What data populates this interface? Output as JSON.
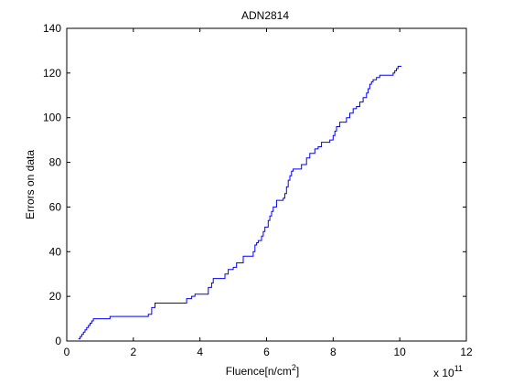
{
  "chart_data": {
    "type": "line",
    "title": "ADN2814",
    "xlabel_main": "Fluence[n/cm",
    "xlabel_sup": "2",
    "xlabel_end": "]",
    "ylabel": "Errors on data",
    "x_multiplier_base": "x 10",
    "x_multiplier_exp": "11",
    "xlim": [
      0,
      12
    ],
    "ylim": [
      0,
      140
    ],
    "x_ticks": [
      0,
      2,
      4,
      6,
      8,
      10,
      12
    ],
    "y_ticks": [
      0,
      20,
      40,
      60,
      80,
      100,
      120,
      140
    ],
    "grid": false,
    "line_color": "#0000ff",
    "series": [
      {
        "step": true,
        "x": [
          0.35,
          0.4,
          0.45,
          0.5,
          0.55,
          0.6,
          0.65,
          0.7,
          0.75,
          0.8,
          0.85,
          1.3,
          2.3,
          2.45,
          2.55,
          2.65,
          3.1,
          3.6,
          3.75,
          3.85,
          4.25,
          4.35,
          4.4,
          4.75,
          4.85,
          5.0,
          5.1,
          5.3,
          5.6,
          5.65,
          5.7,
          5.75,
          5.85,
          5.9,
          5.95,
          6.05,
          6.1,
          6.15,
          6.2,
          6.3,
          6.5,
          6.55,
          6.6,
          6.65,
          6.7,
          6.75,
          6.8,
          7.05,
          7.2,
          7.3,
          7.45,
          7.55,
          7.65,
          7.9,
          8.0,
          8.05,
          8.1,
          8.2,
          8.4,
          8.5,
          8.6,
          8.7,
          8.8,
          8.9,
          9.0,
          9.05,
          9.1,
          9.15,
          9.2,
          9.3,
          9.4,
          9.5,
          9.8,
          9.85,
          9.9,
          9.95,
          10.05
        ],
        "y": [
          1,
          2,
          3,
          4,
          5,
          6,
          7,
          8,
          9,
          10,
          10,
          11,
          11,
          12,
          15,
          17,
          17,
          19,
          20,
          21,
          24,
          26,
          28,
          30,
          32,
          33,
          35,
          38,
          40,
          43,
          44,
          45,
          47,
          49,
          51,
          54,
          56,
          58,
          60,
          63,
          64,
          66,
          69,
          72,
          74,
          76,
          77,
          79,
          82,
          84,
          86,
          87,
          89,
          90,
          92,
          94,
          96,
          98,
          100,
          102,
          104,
          105,
          107,
          109,
          111,
          113,
          115,
          116,
          117,
          118,
          119,
          119,
          120,
          121,
          122,
          123,
          123
        ]
      }
    ]
  }
}
